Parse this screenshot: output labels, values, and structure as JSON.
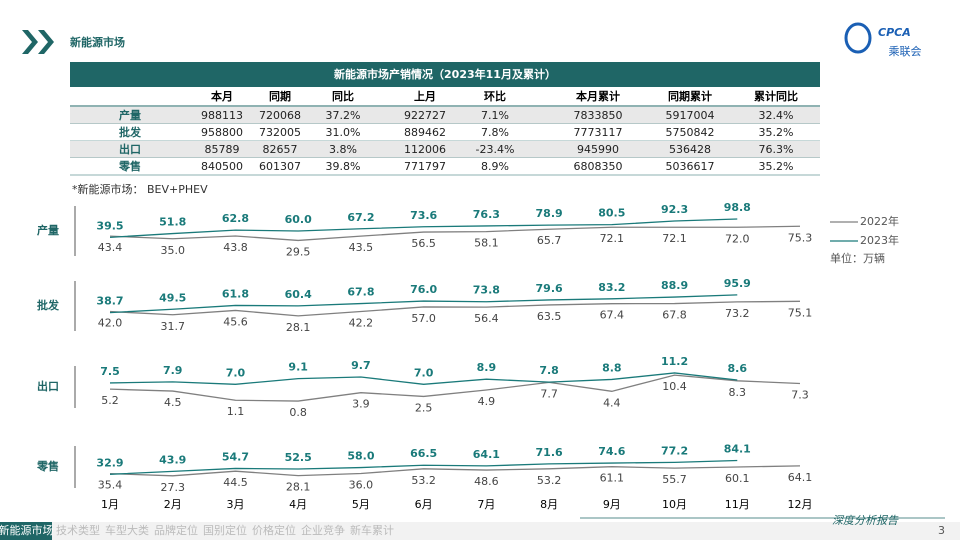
{
  "header": {
    "title": "新能源市场",
    "logo": "CPCA",
    "logo_sub": "乘联会"
  },
  "table": {
    "title": "新能源市场产销情况（2023年11月及累计）",
    "columns": [
      "本月",
      "同期",
      "同比",
      "上月",
      "环比",
      "本月累计",
      "同期累计",
      "累计同比"
    ],
    "rows": [
      [
        "产量",
        "988113",
        "720068",
        "37.2%",
        "922727",
        "7.1%",
        "7833850",
        "5917004",
        "32.4%"
      ],
      [
        "批发",
        "958800",
        "732005",
        "31.0%",
        "889462",
        "7.8%",
        "7773117",
        "5750842",
        "35.2%"
      ],
      [
        "出口",
        "85789",
        "82657",
        "3.8%",
        "112006",
        "-23.4%",
        "945990",
        "536428",
        "76.3%"
      ],
      [
        "零售",
        "840500",
        "601307",
        "39.8%",
        "771797",
        "8.9%",
        "6808350",
        "5036617",
        "35.2%"
      ]
    ]
  },
  "note": "*新能源市场： BEV+PHEV",
  "unit_label": "单位：万辆",
  "chart_data": [
    {
      "type": "line",
      "title": "产量",
      "ylim": [
        -40,
        160
      ],
      "series": [
        {
          "name": "2022年",
          "color": "#808080",
          "values": [
            43.4,
            35.0,
            43.8,
            29.5,
            43.5,
            56.5,
            58.1,
            65.7,
            72.1,
            72.1,
            72.0,
            75.3
          ],
          "value_labels": [
            "43.4",
            "35.0",
            "43.8",
            "29.5",
            "43.5",
            "56.5",
            "58.1",
            "65.7",
            "72.1",
            "72.1",
            "72.0",
            "75.3"
          ]
        },
        {
          "name": "2023年",
          "color": "#1a7a7a",
          "values": [
            39.5,
            51.8,
            62.8,
            60.0,
            67.2,
            73.6,
            76.3,
            78.9,
            80.5,
            92.3,
            98.8,
            null
          ],
          "value_labels": [
            "39.5",
            "51.8",
            "62.8",
            "60.0",
            "67.2",
            "73.6",
            "76.3",
            "78.9",
            "80.5",
            "92.3",
            "98.8",
            null
          ]
        }
      ]
    },
    {
      "type": "line",
      "title": "批发",
      "ylim": [
        -40,
        160
      ],
      "series": [
        {
          "color": "#808080",
          "values": [
            42.0,
            31.7,
            45.6,
            28.1,
            42.2,
            57.0,
            56.4,
            63.5,
            67.4,
            67.8,
            73.2,
            75.1
          ],
          "value_labels": [
            "42.0",
            "31.7",
            "45.6",
            "28.1",
            "42.2",
            "57.0",
            "56.4",
            "63.5",
            "67.4",
            "67.8",
            "73.2",
            "75.1"
          ]
        },
        {
          "color": "#1a7a7a",
          "values": [
            38.7,
            49.5,
            61.8,
            60.4,
            67.8,
            76.0,
            73.8,
            79.6,
            83.2,
            88.9,
            95.9,
            null
          ],
          "value_labels": [
            "38.7",
            "49.5",
            "61.8",
            "60.4",
            "67.8",
            "76.0",
            "73.8",
            "79.6",
            "83.2",
            "88.9",
            "95.9",
            null
          ]
        }
      ]
    },
    {
      "type": "line",
      "title": "出口",
      "ylim": [
        -4,
        16
      ],
      "series": [
        {
          "color": "#808080",
          "values": [
            5.2,
            4.5,
            1.1,
            0.8,
            3.9,
            2.5,
            4.9,
            7.7,
            4.4,
            10.4,
            8.3,
            7.3
          ],
          "value_labels": [
            "5.2",
            "4.5",
            "1.1",
            "0.8",
            "3.9",
            "2.5",
            "4.9",
            "7.7",
            "4.4",
            "10.4",
            "8.3",
            "7.3"
          ]
        },
        {
          "color": "#1a7a7a",
          "values": [
            7.5,
            7.9,
            7.0,
            9.1,
            9.7,
            7.0,
            8.9,
            7.8,
            8.8,
            11.2,
            8.6,
            null
          ],
          "value_labels": [
            "7.5",
            "7.9",
            "7.0",
            "9.1",
            "9.7",
            "7.0",
            "8.9",
            "7.8",
            "8.8",
            "11.2",
            "8.6",
            null
          ]
        }
      ]
    },
    {
      "type": "line",
      "title": "零售",
      "ylim": [
        -40,
        160
      ],
      "categories": [
        "1月",
        "2月",
        "3月",
        "4月",
        "5月",
        "6月",
        "7月",
        "8月",
        "9月",
        "10月",
        "11月",
        "12月"
      ],
      "series": [
        {
          "color": "#808080",
          "values": [
            35.4,
            27.3,
            44.5,
            28.1,
            36.0,
            53.2,
            48.6,
            53.2,
            61.1,
            55.7,
            60.1,
            64.1
          ],
          "value_labels": [
            "35.4",
            "27.3",
            "44.5",
            "28.1",
            "36.0",
            "53.2",
            "48.6",
            "53.2",
            "61.1",
            "55.7",
            "60.1",
            "64.1"
          ]
        },
        {
          "color": "#1a7a7a",
          "values": [
            32.9,
            43.9,
            54.7,
            52.5,
            58.0,
            66.5,
            64.1,
            71.6,
            74.6,
            77.2,
            84.1,
            null
          ],
          "value_labels": [
            "32.9",
            "43.9",
            "54.7",
            "52.5",
            "58.0",
            "66.5",
            "64.1",
            "71.6",
            "74.6",
            "77.2",
            "84.1",
            null
          ]
        }
      ]
    }
  ],
  "nav": {
    "items": [
      "新能源市场",
      "技术类型",
      "车型大类",
      "品牌定位",
      "国别定位",
      "价格定位",
      "企业竞争",
      "新车累计"
    ]
  },
  "footer": {
    "tagline": "深度分析报告",
    "page": "3"
  }
}
